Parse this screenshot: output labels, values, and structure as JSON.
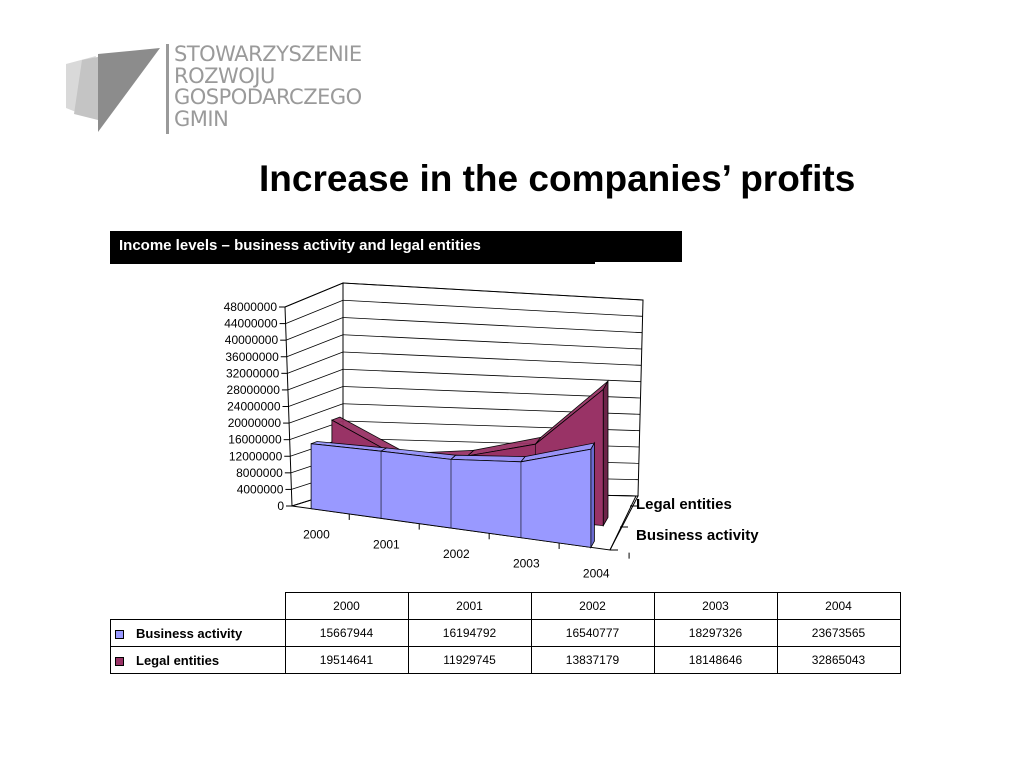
{
  "logo": {
    "lines": [
      "STOWARZYSZENIE",
      "ROZWOJU",
      "GOSPODARCZEGO",
      "GMIN"
    ]
  },
  "title": "Increase in the companies’ profits",
  "subtitle": "Income levels – business activity and legal entities",
  "colors": {
    "business_activity": "#9999ff",
    "legal_entities": "#993366"
  },
  "chart_data": {
    "type": "area",
    "style": "3d",
    "categories": [
      "2000",
      "2001",
      "2002",
      "2003",
      "2004"
    ],
    "series": [
      {
        "name": "Business activity",
        "values": [
          15667944,
          16194792,
          16540777,
          18297326,
          23673565
        ]
      },
      {
        "name": "Legal entities",
        "values": [
          19514641,
          11929745,
          13837179,
          18148646,
          32865043
        ]
      }
    ],
    "y_ticks": [
      "0",
      "4000000",
      "8000000",
      "12000000",
      "16000000",
      "20000000",
      "24000000",
      "28000000",
      "32000000",
      "36000000",
      "40000000",
      "44000000",
      "48000000"
    ],
    "ylim": [
      0,
      48000000
    ],
    "grid": true,
    "legend_placement": "right"
  },
  "table": {
    "years": [
      "2000",
      "2001",
      "2002",
      "2003",
      "2004"
    ],
    "rows": [
      {
        "label": "Business activity",
        "values": [
          "15667944",
          "16194792",
          "16540777",
          "18297326",
          "23673565"
        ]
      },
      {
        "label": "Legal entities",
        "values": [
          "19514641",
          "11929745",
          "13837179",
          "18148646",
          "32865043"
        ]
      }
    ]
  }
}
